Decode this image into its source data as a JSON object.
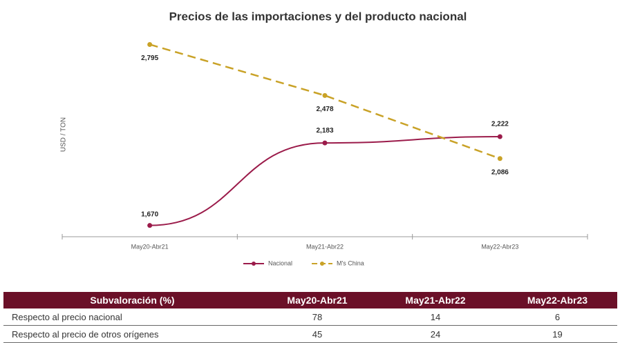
{
  "chart_data": {
    "type": "line",
    "title": "Precios de las importaciones y del producto nacional",
    "y_label": "USD / TON",
    "categories": [
      "May20-Abr21",
      "May21-Abr22",
      "May22-Abr23"
    ],
    "series": [
      {
        "name": "Nacional",
        "color": "#9b1b4a",
        "dashed": false,
        "values": [
          1670,
          2183,
          2222
        ],
        "value_labels": [
          "1,670",
          "2,183",
          "2,222"
        ]
      },
      {
        "name": "M's China",
        "color": "#c9a227",
        "dashed": true,
        "values": [
          2795,
          2478,
          2086
        ],
        "value_labels": [
          "2,795",
          "2,478",
          "2,086"
        ]
      }
    ],
    "ylim": [
      1600,
      2900
    ],
    "legend": "bottom"
  },
  "table": {
    "header": [
      "Subvaloración (%)",
      "May20-Abr21",
      "May21-Abr22",
      "May22-Abr23"
    ],
    "rows": [
      [
        "Respecto al precio nacional",
        "78",
        "14",
        "6"
      ],
      [
        "Respecto al precio de otros orígenes",
        "45",
        "24",
        "19"
      ]
    ]
  }
}
